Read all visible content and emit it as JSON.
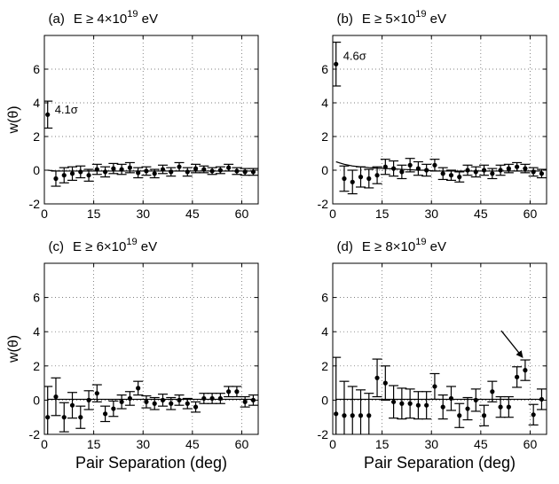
{
  "figure": {
    "xlabel": "Pair Separation   (deg)",
    "ylabel": "w(θ)"
  },
  "chart_data": [
    {
      "type": "scatter",
      "panel_label": "(a)",
      "title_prefix": "E  ≥  4×10",
      "title_exp": "19",
      "title_suffix": " eV",
      "xlabel": "",
      "ylabel": "w(θ)",
      "xlim": [
        0,
        65
      ],
      "ylim": [
        -2,
        8
      ],
      "xticks": [
        0,
        15,
        30,
        45,
        60
      ],
      "yticks": [
        -2,
        0,
        2,
        4,
        6
      ],
      "grid": true,
      "annotation": "4.1σ",
      "annotation_index": 0,
      "arrow_index": null,
      "x": [
        1,
        3.5,
        6,
        8.5,
        11,
        13.5,
        16,
        18.5,
        21,
        23.5,
        26,
        28.5,
        31,
        33.5,
        36,
        38.5,
        41,
        43.5,
        46,
        48.5,
        51,
        53.5,
        56,
        58.5,
        61,
        63.5
      ],
      "y": [
        3.3,
        -0.5,
        -0.3,
        -0.2,
        -0.1,
        -0.3,
        0.05,
        -0.1,
        0.1,
        0.05,
        0.15,
        -0.15,
        -0.05,
        -0.2,
        0.05,
        -0.1,
        0.2,
        -0.1,
        0.1,
        0.05,
        -0.05,
        0.0,
        0.15,
        -0.05,
        -0.1,
        -0.1
      ],
      "err": [
        0.8,
        0.45,
        0.45,
        0.4,
        0.35,
        0.35,
        0.3,
        0.3,
        0.3,
        0.3,
        0.3,
        0.3,
        0.25,
        0.25,
        0.25,
        0.25,
        0.25,
        0.25,
        0.25,
        0.2,
        0.2,
        0.2,
        0.2,
        0.2,
        0.2,
        0.2
      ],
      "model": [
        0.0,
        -0.05,
        -0.05,
        -0.05,
        -0.05,
        -0.05,
        -0.05,
        -0.05,
        -0.05,
        -0.05,
        -0.05,
        -0.05,
        -0.05,
        -0.05,
        -0.05,
        -0.05,
        -0.05,
        -0.05,
        -0.05,
        -0.05,
        -0.05,
        -0.05,
        -0.05,
        -0.05,
        -0.05,
        -0.05
      ]
    },
    {
      "type": "scatter",
      "panel_label": "(b)",
      "title_prefix": "E  ≥  5×10",
      "title_exp": "19",
      "title_suffix": " eV",
      "xlabel": "",
      "ylabel": "",
      "xlim": [
        0,
        65
      ],
      "ylim": [
        -2,
        8
      ],
      "xticks": [
        0,
        15,
        30,
        45,
        60
      ],
      "yticks": [
        -2,
        0,
        2,
        4,
        6
      ],
      "grid": true,
      "annotation": "4.6σ",
      "annotation_index": 0,
      "arrow_index": null,
      "x": [
        1,
        3.5,
        6,
        8.5,
        11,
        13.5,
        16,
        18.5,
        21,
        23.5,
        26,
        28.5,
        31,
        33.5,
        36,
        38.5,
        41,
        43.5,
        46,
        48.5,
        51,
        53.5,
        56,
        58.5,
        61,
        63.5
      ],
      "y": [
        6.3,
        -0.5,
        -0.7,
        -0.4,
        -0.5,
        -0.3,
        0.2,
        0.1,
        -0.1,
        0.3,
        0.1,
        0.0,
        0.3,
        -0.2,
        -0.3,
        -0.4,
        0.0,
        -0.1,
        0.0,
        -0.2,
        0.0,
        0.1,
        0.2,
        0.1,
        -0.1,
        -0.2
      ],
      "err": [
        1.3,
        0.75,
        0.7,
        0.6,
        0.55,
        0.5,
        0.45,
        0.45,
        0.4,
        0.4,
        0.4,
        0.35,
        0.35,
        0.35,
        0.3,
        0.3,
        0.3,
        0.3,
        0.3,
        0.3,
        0.3,
        0.25,
        0.25,
        0.25,
        0.25,
        0.25
      ],
      "model": [
        0.5,
        0.35,
        0.25,
        0.2,
        0.15,
        0.12,
        0.1,
        0.08,
        0.05,
        0.03,
        0.0,
        0.0,
        -0.05,
        -0.05,
        -0.05,
        -0.05,
        -0.05,
        -0.05,
        -0.05,
        -0.05,
        -0.05,
        -0.05,
        -0.05,
        -0.05,
        -0.05,
        -0.05
      ]
    },
    {
      "type": "scatter",
      "panel_label": "(c)",
      "title_prefix": "E  ≥  6×10",
      "title_exp": "19",
      "title_suffix": " eV",
      "xlabel": "Pair Separation   (deg)",
      "ylabel": "w(θ)",
      "xlim": [
        0,
        65
      ],
      "ylim": [
        -2,
        8
      ],
      "xticks": [
        0,
        15,
        30,
        45,
        60
      ],
      "yticks": [
        -2,
        0,
        2,
        4,
        6
      ],
      "grid": true,
      "annotation": "",
      "annotation_index": null,
      "arrow_index": null,
      "x": [
        1,
        3.5,
        6,
        8.5,
        11,
        13.5,
        16,
        18.5,
        21,
        23.5,
        26,
        28.5,
        31,
        33.5,
        36,
        38.5,
        41,
        43.5,
        46,
        48.5,
        51,
        53.5,
        56,
        58.5,
        61,
        63.5
      ],
      "y": [
        -1.0,
        0.2,
        -1.0,
        -0.3,
        -1.0,
        0.0,
        0.4,
        -0.8,
        -0.5,
        -0.1,
        0.1,
        0.7,
        -0.1,
        -0.2,
        0.0,
        -0.2,
        0.0,
        -0.2,
        -0.4,
        0.1,
        0.1,
        0.1,
        0.5,
        0.5,
        -0.1,
        0.0
      ],
      "err": [
        1.8,
        1.1,
        0.85,
        0.75,
        0.65,
        0.55,
        0.5,
        0.45,
        0.45,
        0.4,
        0.4,
        0.4,
        0.35,
        0.35,
        0.35,
        0.35,
        0.3,
        0.3,
        0.3,
        0.3,
        0.3,
        0.3,
        0.3,
        0.3,
        0.3,
        0.3
      ],
      "model": [
        0.05,
        0.05,
        0.05,
        0.05,
        0.05,
        0.05,
        0.05,
        0.05,
        0.05,
        0.05,
        0.05,
        0.05,
        0.05,
        0.05,
        0.05,
        0.05,
        0.05,
        0.05,
        0.05,
        0.05,
        0.05,
        0.05,
        0.05,
        0.05,
        0.05,
        0.05
      ]
    },
    {
      "type": "scatter",
      "panel_label": "(d)",
      "title_prefix": "E  ≥  8×10",
      "title_exp": "19",
      "title_suffix": " eV",
      "xlabel": "Pair Separation   (deg)",
      "ylabel": "",
      "xlim": [
        0,
        65
      ],
      "ylim": [
        -2,
        8
      ],
      "xticks": [
        0,
        15,
        30,
        45,
        60
      ],
      "yticks": [
        -2,
        0,
        2,
        4,
        6
      ],
      "grid": true,
      "annotation": "",
      "annotation_index": null,
      "arrow_index": 23,
      "x": [
        1,
        3.5,
        6,
        8.5,
        11,
        13.5,
        16,
        18.5,
        21,
        23.5,
        26,
        28.5,
        31,
        33.5,
        36,
        38.5,
        41,
        43.5,
        46,
        48.5,
        51,
        53.5,
        56,
        58.5,
        61,
        63.5
      ],
      "y": [
        -0.8,
        -0.9,
        -0.9,
        -0.9,
        -0.9,
        1.3,
        1.0,
        -0.1,
        -0.2,
        -0.2,
        -0.3,
        -0.3,
        0.8,
        -0.4,
        0.1,
        -0.9,
        -0.5,
        0.0,
        -0.9,
        0.5,
        -0.4,
        -0.4,
        1.35,
        1.75,
        -0.85,
        0.05
      ],
      "err": [
        3.3,
        2.0,
        1.7,
        1.5,
        1.3,
        1.1,
        1.0,
        0.95,
        0.9,
        0.85,
        0.8,
        0.8,
        0.75,
        0.7,
        0.7,
        0.7,
        0.65,
        0.65,
        0.6,
        0.6,
        0.6,
        0.6,
        0.6,
        0.6,
        0.6,
        0.6
      ],
      "model": [
        0.05,
        0.05,
        0.05,
        0.05,
        0.05,
        0.05,
        0.05,
        0.05,
        0.05,
        0.05,
        0.05,
        0.05,
        0.05,
        0.05,
        0.05,
        0.05,
        0.05,
        0.05,
        0.05,
        0.05,
        0.05,
        0.05,
        0.05,
        0.05,
        0.05,
        0.05
      ]
    }
  ]
}
